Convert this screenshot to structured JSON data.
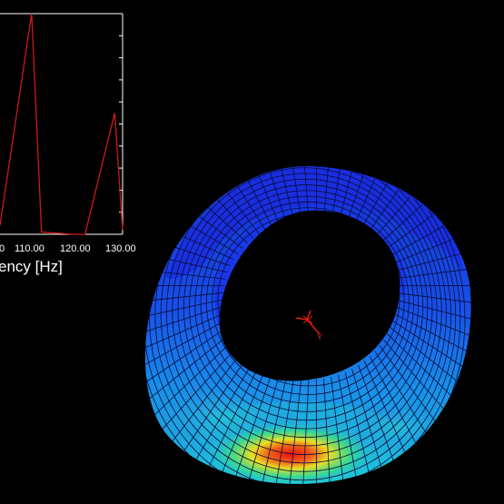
{
  "chart_data": {
    "type": "line",
    "xlabel": "ency [Hz]",
    "x_tick_labels": [
      "0",
      "110.00",
      "120.00",
      "130.00"
    ],
    "xlim": [
      99.5,
      130.5
    ],
    "series": [
      {
        "color": "#d01818",
        "points": [
          [
            99.5,
            0.04
          ],
          [
            107.5,
            1.0
          ],
          [
            110.0,
            0.01
          ],
          [
            118.0,
            0.0
          ],
          [
            121.0,
            0.0
          ],
          [
            128.5,
            0.55
          ],
          [
            130.5,
            0.02
          ]
        ]
      }
    ]
  },
  "model_view": {
    "triad_label": "Y",
    "colors": {
      "background": "#000000",
      "mesh_line": "#0a0a3a",
      "low": "#1030e8",
      "mid": "#18b8e0",
      "high": "#e8e020",
      "peak": "#e81010"
    }
  }
}
